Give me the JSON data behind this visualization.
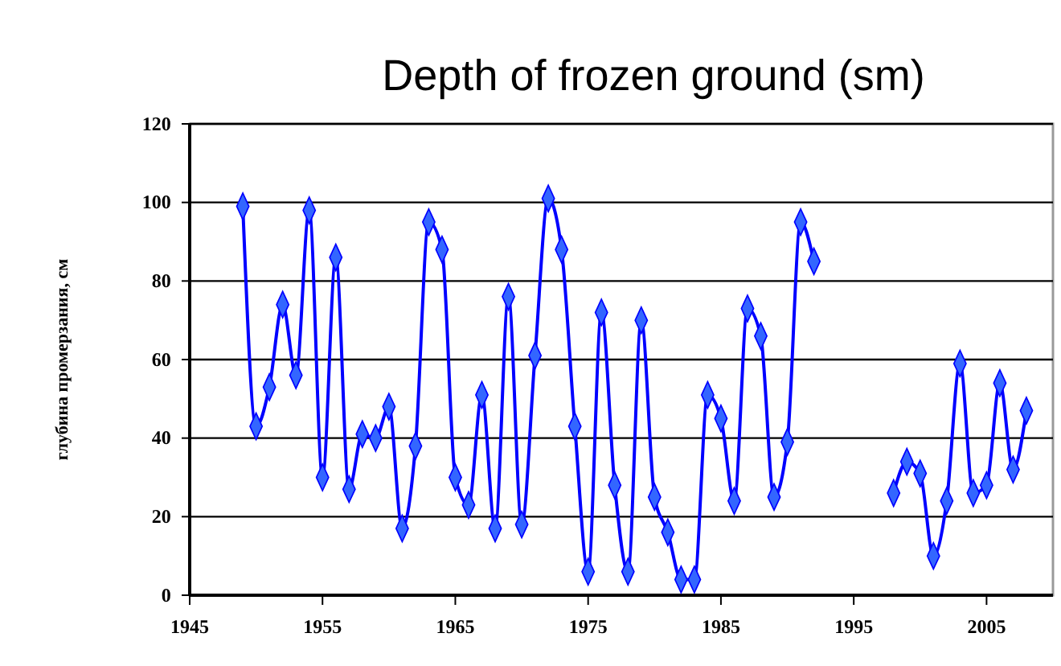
{
  "chart_data": {
    "type": "line",
    "title": "Depth of frozen ground (sm)",
    "ylabel": "глубина промерзания, см",
    "x": [
      1949,
      1950,
      1951,
      1952,
      1953,
      1954,
      1955,
      1956,
      1957,
      1958,
      1959,
      1960,
      1961,
      1962,
      1963,
      1964,
      1965,
      1966,
      1967,
      1968,
      1969,
      1970,
      1971,
      1972,
      1973,
      1974,
      1975,
      1976,
      1977,
      1978,
      1979,
      1980,
      1981,
      1982,
      1983,
      1984,
      1985,
      1986,
      1987,
      1988,
      1989,
      1990,
      1991,
      1992,
      1993,
      1994,
      1995,
      1996,
      1997,
      1998,
      1999,
      2000,
      2001,
      2002,
      2003,
      2004,
      2005,
      2006,
      2007,
      2008
    ],
    "series": [
      {
        "color": "#0000ff",
        "values": [
          99,
          43,
          53,
          74,
          56,
          98,
          30,
          86,
          27,
          41,
          40,
          48,
          17,
          38,
          95,
          88,
          30,
          23,
          51,
          17,
          76,
          18,
          61,
          101,
          88,
          43,
          6,
          72,
          28,
          6,
          70,
          25,
          16,
          4,
          4,
          51,
          45,
          24,
          73,
          66,
          25,
          39,
          95,
          85,
          null,
          null,
          null,
          null,
          null,
          26,
          34,
          31,
          10,
          24,
          59,
          26,
          28,
          54,
          32,
          47
        ]
      }
    ],
    "xlim": [
      1945,
      2010
    ],
    "xticks": [
      1945,
      1955,
      1965,
      1975,
      1985,
      1995,
      2005
    ],
    "ylim": [
      0,
      120
    ],
    "yticks": [
      0,
      20,
      40,
      60,
      80,
      100,
      120
    ],
    "grid": "y",
    "marker": "diamond",
    "line_style": "solid"
  }
}
